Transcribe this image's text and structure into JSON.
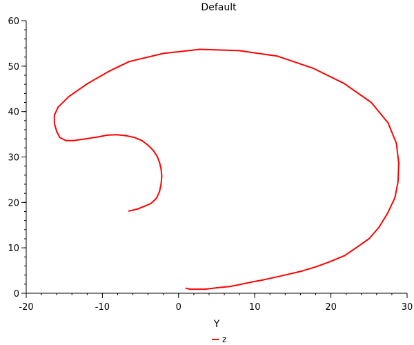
{
  "chart_data": {
    "type": "line",
    "title": "Default",
    "xlabel": "Y",
    "ylabel": "",
    "xlim": [
      -20,
      30
    ],
    "ylim": [
      0,
      60
    ],
    "xticks": [
      -20,
      -10,
      0,
      10,
      20,
      30
    ],
    "yticks": [
      0,
      10,
      20,
      30,
      40,
      50,
      60
    ],
    "xtick_labels": [
      "-20",
      "-10",
      "0",
      "10",
      "20",
      "30"
    ],
    "ytick_labels": [
      "0",
      "10",
      "20",
      "30",
      "40",
      "50",
      "60"
    ],
    "grid": false,
    "legend": {
      "position": "bottom-center",
      "entries": [
        "z"
      ]
    },
    "series": [
      {
        "name": "z",
        "color": "#ff0000",
        "x": [
          1.0,
          1.5,
          3.5,
          5.0,
          6.8,
          8.3,
          9.7,
          11.0,
          13.7,
          16.0,
          18.0,
          19.8,
          21.8,
          23.3,
          25.0,
          26.3,
          27.4,
          28.4,
          28.8,
          28.9,
          28.6,
          27.5,
          25.3,
          21.7,
          17.7,
          13.0,
          8.0,
          2.8,
          -2.0,
          -6.5,
          -9.2,
          -12.0,
          -14.4,
          -15.8,
          -16.3,
          -16.3,
          -16.0,
          -15.6,
          -14.8,
          -13.8,
          -12.2,
          -10.6,
          -9.4,
          -8.1,
          -6.9,
          -5.8,
          -4.8,
          -4.0,
          -3.3,
          -2.8,
          -2.5,
          -2.3,
          -2.2,
          -2.3,
          -2.5,
          -2.9,
          -3.6,
          -4.4,
          -5.3,
          -6.0,
          -6.5
        ],
        "y": [
          1.1,
          0.9,
          0.9,
          1.2,
          1.5,
          2.0,
          2.5,
          2.9,
          3.9,
          4.8,
          5.8,
          6.9,
          8.3,
          10.0,
          12.0,
          14.5,
          17.5,
          21.0,
          24.5,
          28.6,
          33.0,
          37.5,
          42.0,
          46.2,
          49.5,
          52.2,
          53.4,
          53.7,
          52.8,
          51.0,
          48.8,
          46.1,
          43.3,
          41.0,
          39.2,
          37.4,
          35.6,
          34.3,
          33.6,
          33.6,
          34.0,
          34.4,
          34.8,
          34.9,
          34.7,
          34.3,
          33.6,
          32.6,
          31.4,
          30.1,
          28.8,
          27.4,
          25.8,
          24.0,
          22.4,
          20.9,
          19.8,
          19.2,
          18.6,
          18.3,
          18.1
        ]
      }
    ]
  }
}
